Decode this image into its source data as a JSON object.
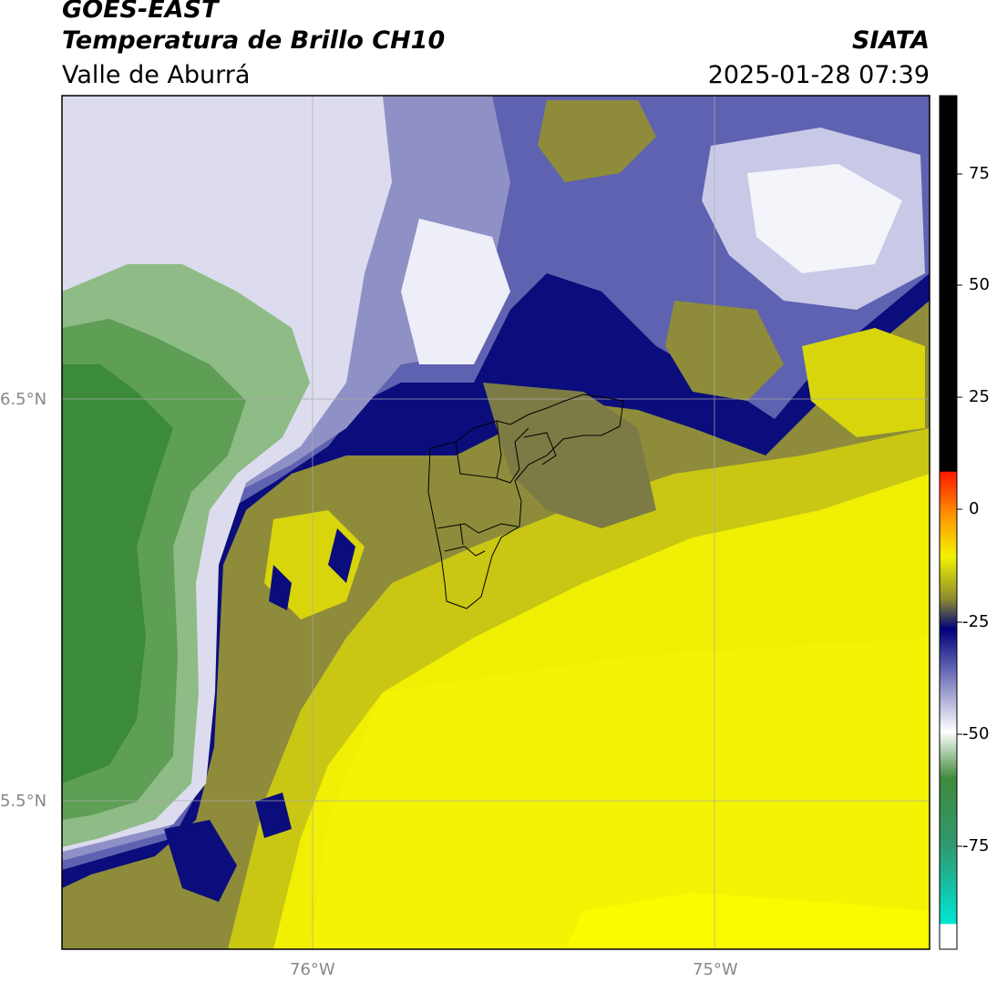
{
  "header": {
    "satellite": "GOES-EAST",
    "product": "Temperatura de Brillo CH10",
    "region": "Valle de Aburrá",
    "agency": "SIATA",
    "datetime": "2025-01-28 07:39"
  },
  "axes": {
    "lat_ticks": [
      "6.5°N",
      "5.5°N"
    ],
    "lon_ticks": [
      "76°W",
      "75°W"
    ]
  },
  "colorbar": {
    "ticks": [
      "75",
      "50",
      "25",
      "0",
      "-25",
      "-50",
      "-75"
    ],
    "colors": {
      "black": "#000000",
      "red": "#ff2a00",
      "orange": "#ff8c00",
      "yellow": "#f2f200",
      "olive": "#8a8a2a",
      "navy": "#00007a",
      "purple": "#5f62b0",
      "white": "#ffffff",
      "green": "#3f8a3a",
      "cyan": "#00e0d0"
    }
  },
  "colors": {
    "yellow": "#f0ef04",
    "olive": "#8e8c3a",
    "navy": "#0b0d7c",
    "lavender": "#8f91c6",
    "pale": "#dcdcee",
    "green_light": "#8fbb86",
    "green_dark": "#3c8a3b"
  }
}
